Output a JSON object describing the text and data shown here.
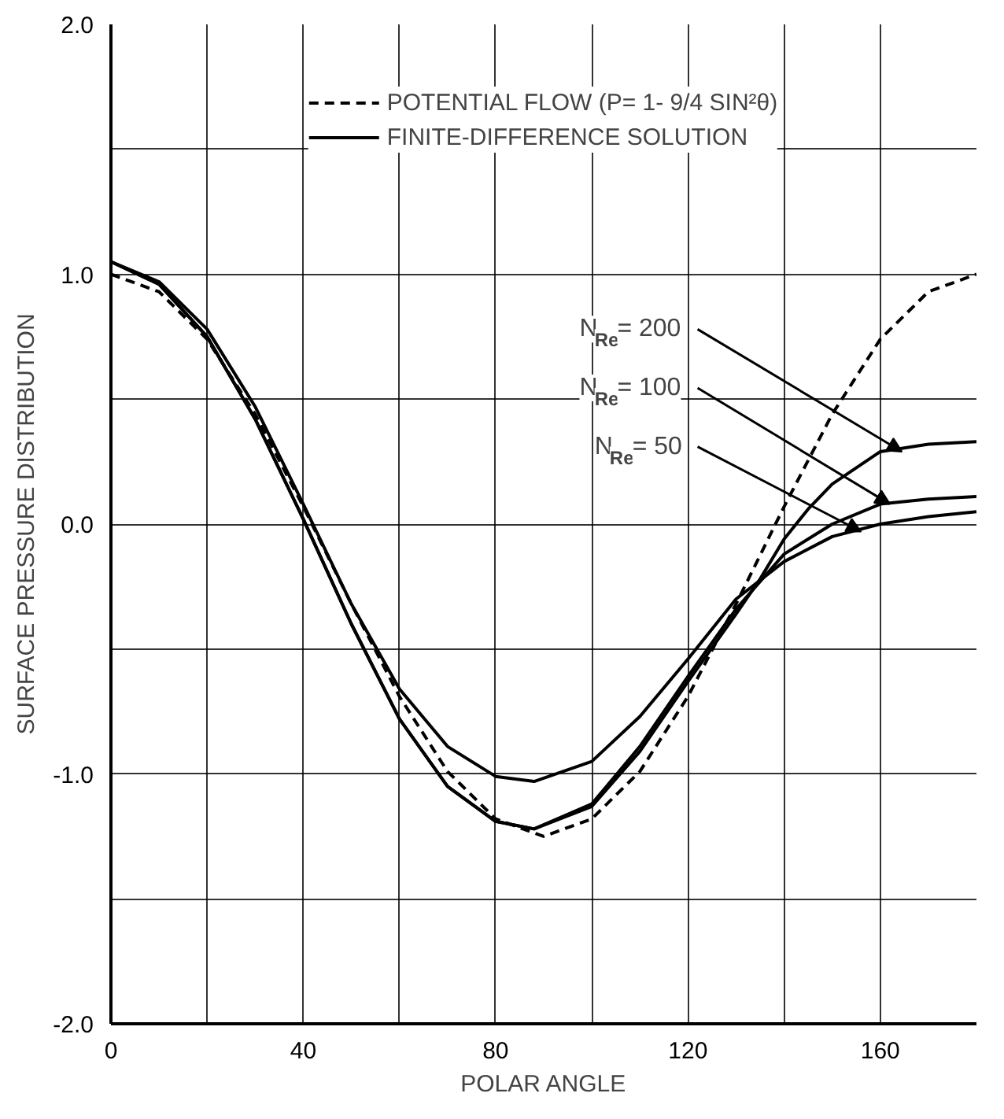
{
  "chart_data": {
    "type": "line",
    "xlabel": "POLAR ANGLE",
    "ylabel": "SURFACE PRESSURE DISTRIBUTION",
    "xlim": [
      0,
      180
    ],
    "ylim": [
      -2,
      2
    ],
    "xticks": [
      0,
      {
        "value": 20,
        "label": null
      },
      40,
      {
        "value": 60,
        "label": null
      },
      80,
      {
        "value": 100,
        "label": null
      },
      120,
      {
        "value": 140,
        "label": null
      },
      160
    ],
    "yticks": [
      {
        "value": -2,
        "label": "-2.0"
      },
      {
        "value": -1.5,
        "label": null
      },
      {
        "value": -1,
        "label": "-1.0"
      },
      {
        "value": -0.5,
        "label": null
      },
      {
        "value": 0,
        "label": "0.0"
      },
      {
        "value": 0.5,
        "label": null
      },
      {
        "value": 1,
        "label": "1.0"
      },
      {
        "value": 1.5,
        "label": null
      },
      {
        "value": 2,
        "label": "2.0"
      }
    ],
    "grid": true,
    "legend": "top",
    "series": [
      {
        "name": "POTENTIAL FLOW (P= 1- 9/4 SIN²θ)",
        "color": "#000000",
        "line_style": "dashed",
        "x": [
          0,
          10,
          20,
          30,
          40,
          50,
          60,
          70,
          80,
          90,
          100,
          110,
          120,
          130,
          140,
          150,
          160,
          170,
          180
        ],
        "values": [
          1.0,
          0.93,
          0.74,
          0.44,
          0.07,
          -0.32,
          -0.69,
          -0.99,
          -1.18,
          -1.25,
          -1.18,
          -0.99,
          -0.69,
          -0.32,
          0.07,
          0.44,
          0.74,
          0.93,
          1.0
        ]
      },
      {
        "name": "FINITE-DIFFERENCE SOLUTION",
        "color": "#000000",
        "line_style": "solid",
        "x": [
          0,
          10,
          20,
          30,
          40,
          50,
          60,
          70,
          80,
          88,
          100,
          110,
          120,
          130,
          135,
          140,
          145,
          150,
          160,
          170,
          180
        ],
        "values": [
          1.05,
          0.96,
          0.75,
          0.42,
          0.02,
          -0.4,
          -0.78,
          -1.05,
          -1.19,
          -1.22,
          -1.13,
          -0.91,
          -0.63,
          -0.36,
          -0.22,
          -0.06,
          0.06,
          0.16,
          0.29,
          0.32,
          0.33
        ]
      },
      {
        "color": "#000000",
        "line_style": "solid",
        "x": [
          0,
          10,
          20,
          30,
          40,
          50,
          60,
          70,
          80,
          88,
          100,
          110,
          120,
          130,
          140,
          150,
          160,
          170,
          180
        ],
        "values": [
          1.05,
          0.96,
          0.75,
          0.42,
          0.02,
          -0.4,
          -0.78,
          -1.05,
          -1.19,
          -1.22,
          -1.12,
          -0.89,
          -0.61,
          -0.34,
          -0.12,
          0.0,
          0.08,
          0.1,
          0.11
        ]
      },
      {
        "color": "#000000",
        "line_style": "solid",
        "x": [
          0,
          10,
          20,
          30,
          40,
          50,
          60,
          70,
          80,
          88,
          100,
          110,
          120,
          130,
          140,
          150,
          160,
          170,
          180
        ],
        "values": [
          1.05,
          0.97,
          0.78,
          0.47,
          0.08,
          -0.32,
          -0.66,
          -0.89,
          -1.01,
          -1.03,
          -0.95,
          -0.77,
          -0.54,
          -0.3,
          -0.15,
          -0.05,
          0.0,
          0.03,
          0.05
        ]
      }
    ],
    "annotations": [
      {
        "text": "N$_{Re}$= 200",
        "x": 164.5,
        "y": 0.29
      },
      {
        "text": "N$_{Re}$= 100",
        "x": 162,
        "y": 0.08
      },
      {
        "text": "N$_{Re}$= 50",
        "x": 156,
        "y": -0.03
      }
    ]
  }
}
